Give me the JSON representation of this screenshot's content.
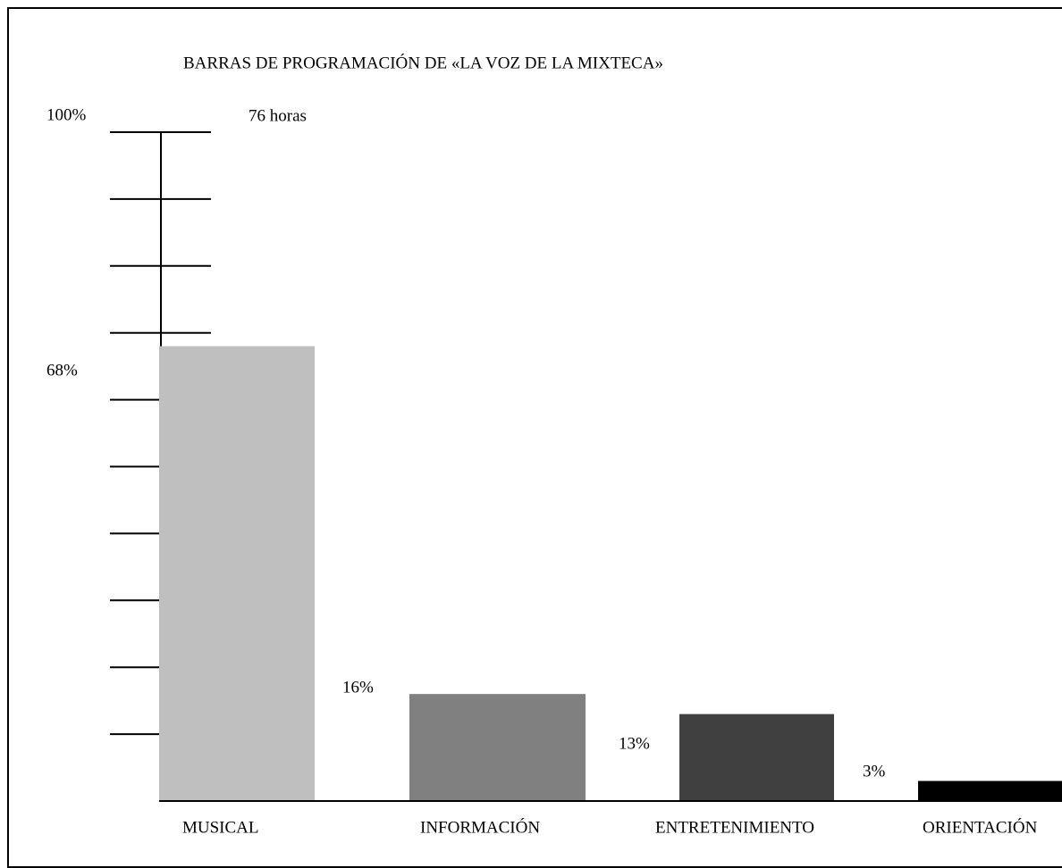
{
  "chart_data": {
    "type": "bar",
    "title": "BARRAS DE PROGRAMACIÓN DE «LA VOZ DE LA MIXTECA»",
    "annotation": "76 horas",
    "categories": [
      "MUSICAL",
      "INFORMACIÓN",
      "ENTRETENIMIENTO",
      "ORIENTACIÓN"
    ],
    "values": [
      68,
      16,
      13,
      3
    ],
    "value_labels": [
      "68%",
      "16%",
      "13%",
      "3%"
    ],
    "colors": [
      "#bfbfbf",
      "#808080",
      "#404040",
      "#000000"
    ],
    "ylim": [
      0,
      100
    ],
    "yticks": [
      {
        "value": 100,
        "label": "100%"
      },
      90,
      80,
      70,
      60,
      50,
      40,
      30,
      20,
      10
    ]
  }
}
